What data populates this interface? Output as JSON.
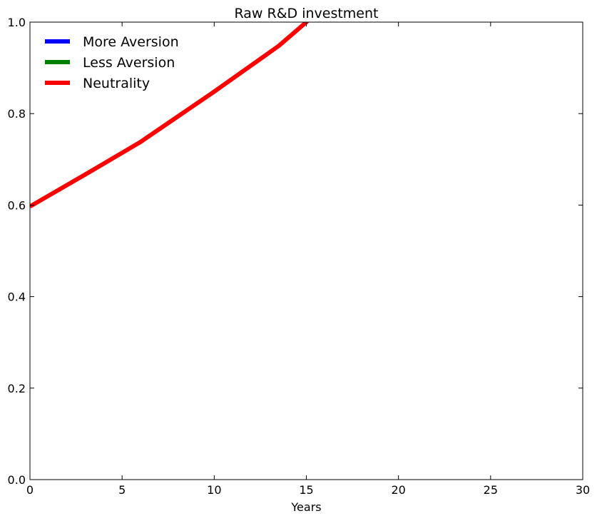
{
  "chart_data": {
    "type": "line",
    "title": "Raw R&D investment",
    "xlabel": "Years",
    "ylabel": "",
    "xlim": [
      0,
      30
    ],
    "ylim": [
      0.0,
      1.0
    ],
    "x_ticks": [
      0,
      5,
      10,
      15,
      20,
      25,
      30
    ],
    "y_ticks": [
      0.0,
      0.2,
      0.4,
      0.6,
      0.8,
      1.0
    ],
    "x_tick_labels": [
      "0",
      "5",
      "10",
      "15",
      "20",
      "25",
      "30"
    ],
    "y_tick_labels": [
      "0.0",
      "0.2",
      "0.4",
      "0.6",
      "0.8",
      "1.0"
    ],
    "grid": false,
    "legend_position": "top-left",
    "series": [
      {
        "name": "More Aversion",
        "color": "#0000ff",
        "x": [],
        "y": []
      },
      {
        "name": "Less Aversion",
        "color": "#008000",
        "x": [],
        "y": []
      },
      {
        "name": "Neutrality",
        "color": "#ff0000",
        "x": [
          0,
          3,
          6,
          10,
          13.5,
          15,
          15.1
        ],
        "y": [
          0.597,
          0.667,
          0.738,
          0.848,
          0.948,
          1.0,
          1.004
        ]
      }
    ]
  }
}
